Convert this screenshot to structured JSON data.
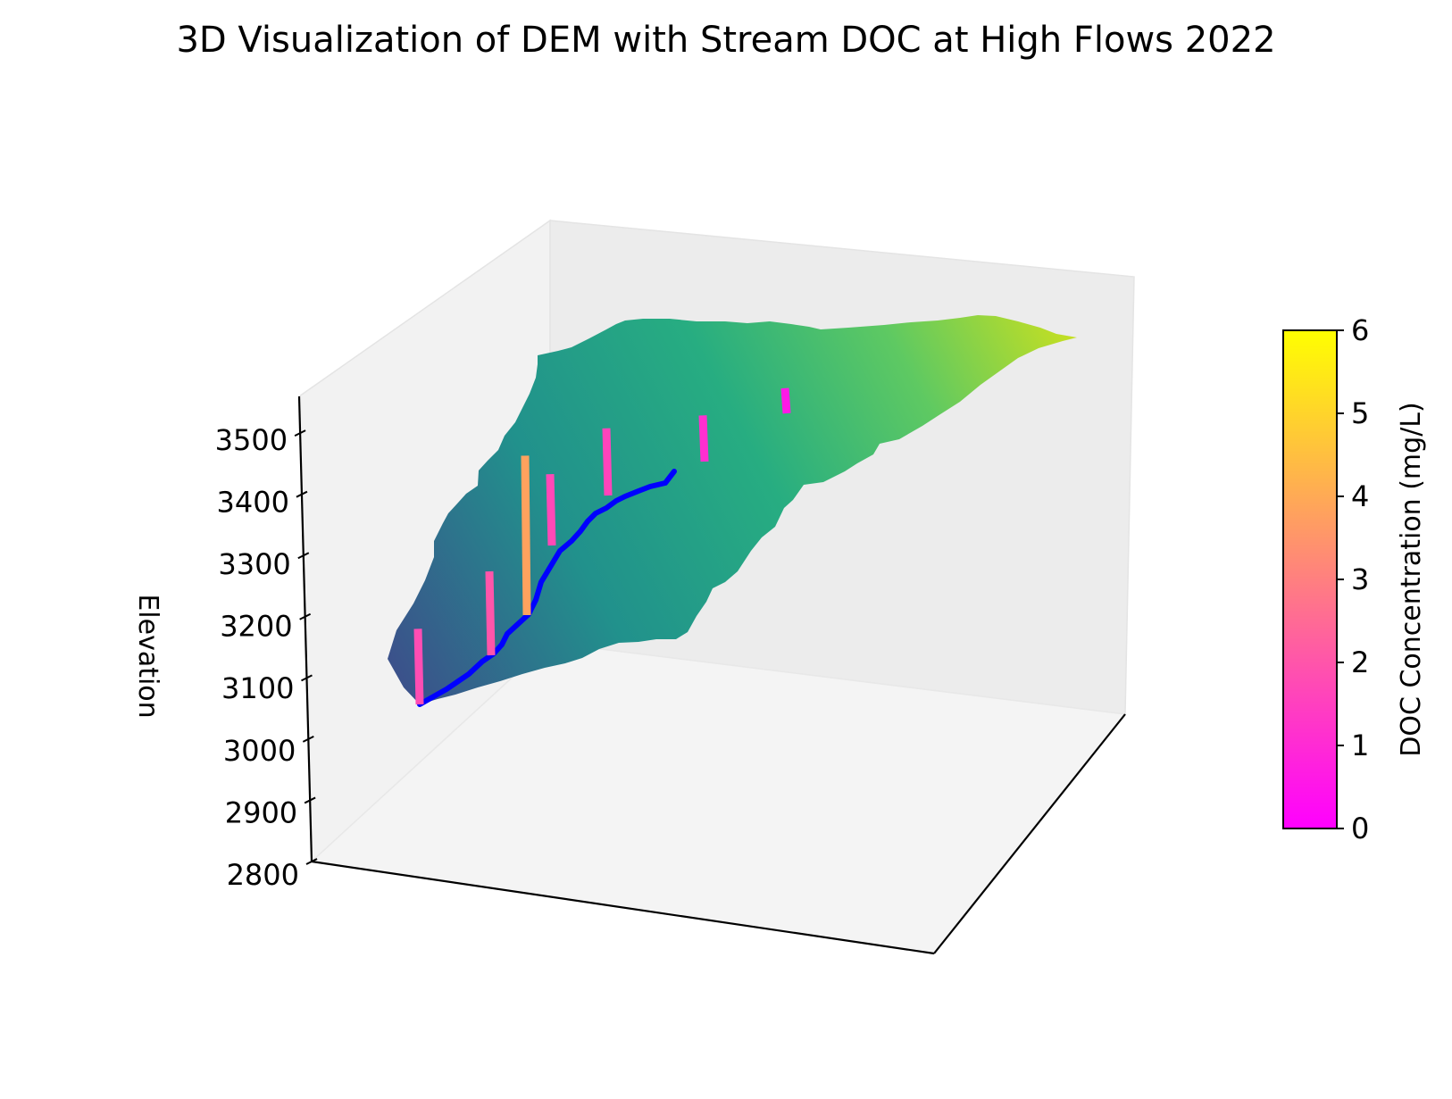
{
  "chart_data": {
    "type": "surface3d",
    "title": "3D Visualization of DEM with Stream DOC at High Flows 2022",
    "zlabel": "Elevation",
    "zlim": [
      2800,
      3560
    ],
    "z_ticks": [
      2800,
      2900,
      3000,
      3100,
      3200,
      3300,
      3400,
      3500
    ],
    "surface_colormap": "viridis",
    "stream_color": "#0000ff",
    "colorbar": {
      "label": "DOC Concentration (mg/L)",
      "ticks": [
        0,
        1,
        2,
        3,
        4,
        5,
        6
      ],
      "range": [
        0,
        6
      ],
      "colormap": "spring",
      "colors": [
        "#ff00ff",
        "#ffff00"
      ]
    },
    "doc_samples": [
      {
        "site": 1,
        "elevation": 3090,
        "doc": 1.8
      },
      {
        "site": 2,
        "elevation": 3175,
        "doc": 2.0
      },
      {
        "site": 3,
        "elevation": 3245,
        "doc": 3.8
      },
      {
        "site": 4,
        "elevation": 3355,
        "doc": 1.7
      },
      {
        "site": 5,
        "elevation": 3430,
        "doc": 1.6
      },
      {
        "site": 6,
        "elevation": 3500,
        "doc": 1.1
      },
      {
        "site": 7,
        "elevation": 3550,
        "doc": 0.6
      }
    ]
  }
}
